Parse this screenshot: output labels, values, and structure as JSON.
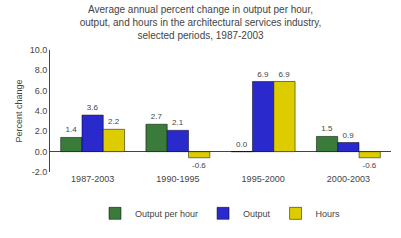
{
  "chart_data": {
    "type": "bar",
    "title": "Average annual percent change in output per hour,\noutput, and hours in the architectural services industry,\nselected periods, 1987-2003",
    "ylabel": "Percent change",
    "categories": [
      "1987-2003",
      "1990-1995",
      "1995-2000",
      "2000-2003"
    ],
    "series": [
      {
        "name": "Output per hour",
        "color": "#3a7a3a",
        "values": [
          1.4,
          2.7,
          0.0,
          1.5
        ],
        "value_labels": [
          "1.4",
          "2.7",
          "0.0",
          "1.5"
        ]
      },
      {
        "name": "Output",
        "color": "#2929cc",
        "values": [
          3.6,
          2.1,
          6.9,
          0.9
        ]
      },
      {
        "name": "Hours",
        "color": "#ddcc00",
        "values": [
          2.2,
          -0.6,
          6.9,
          -0.6
        ]
      }
    ],
    "ylim": [
      -2.0,
      10.0
    ],
    "yticks": [
      {
        "value": -2,
        "label": "-2.0"
      },
      {
        "value": 0,
        "label": "0.0"
      },
      {
        "value": 2,
        "label": "2.0"
      },
      {
        "value": 4,
        "label": "4.0"
      },
      {
        "value": 6,
        "label": "6.0"
      },
      {
        "value": 8,
        "label": "8.0"
      },
      {
        "value": 10,
        "label": "10.0"
      }
    ],
    "data_labels": true,
    "legend": "bottom",
    "grid": false
  }
}
